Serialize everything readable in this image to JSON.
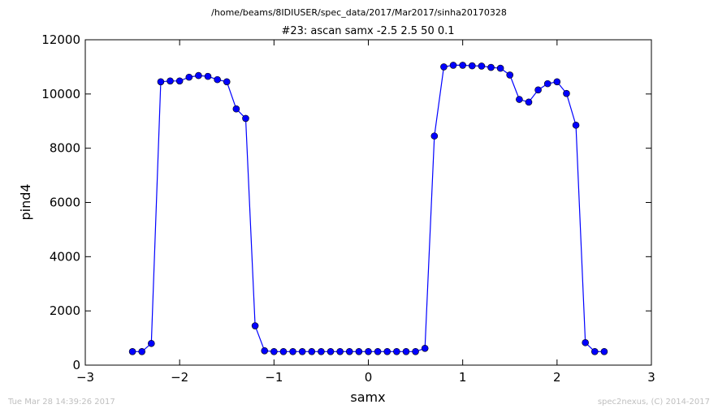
{
  "header": {
    "path": "/home/beams/8IDIUSER/spec_data/2017/Mar2017/sinha20170328"
  },
  "footer": {
    "timestamp": "Tue Mar 28 14:39:26 2017",
    "credit": "spec2nexus, (C) 2014-2017"
  },
  "chart_data": {
    "type": "line",
    "title": "#23: ascan  samx -2.5 2.5  50 0.1",
    "xlabel": "samx",
    "ylabel": "pind4",
    "xlim": [
      -3,
      3
    ],
    "ylim": [
      0,
      12000
    ],
    "xticks": [
      -3,
      -2,
      -1,
      0,
      1,
      2,
      3
    ],
    "xtick_labels": [
      "−3",
      "−2",
      "−1",
      "0",
      "1",
      "2",
      "3"
    ],
    "yticks": [
      0,
      2000,
      4000,
      6000,
      8000,
      10000,
      12000
    ],
    "ytick_labels": [
      "0",
      "2000",
      "4000",
      "6000",
      "8000",
      "10000",
      "12000"
    ],
    "grid": false,
    "line_color": "#0000ff",
    "marker": "circle",
    "series": [
      {
        "x": [
          -2.5,
          -2.4,
          -2.3,
          -2.2,
          -2.1,
          -2.0,
          -1.9,
          -1.8,
          -1.7,
          -1.6,
          -1.5,
          -1.4,
          -1.3,
          -1.2,
          -1.1,
          -1.0,
          -0.9,
          -0.8,
          -0.7,
          -0.6,
          -0.5,
          -0.4,
          -0.3,
          -0.2,
          -0.1,
          0.0,
          0.1,
          0.2,
          0.3,
          0.4,
          0.5,
          0.6,
          0.7,
          0.8,
          0.9,
          1.0,
          1.1,
          1.2,
          1.3,
          1.4,
          1.5,
          1.6,
          1.7,
          1.8,
          1.9,
          2.0,
          2.1,
          2.2,
          2.3,
          2.4,
          2.5
        ],
        "values": [
          500,
          500,
          800,
          10450,
          10480,
          10480,
          10620,
          10680,
          10650,
          10530,
          10450,
          9450,
          9100,
          1450,
          530,
          500,
          500,
          500,
          500,
          500,
          500,
          500,
          500,
          500,
          500,
          500,
          500,
          500,
          500,
          500,
          500,
          620,
          8450,
          11000,
          11060,
          11060,
          11040,
          11030,
          10980,
          10950,
          10700,
          9800,
          9700,
          10150,
          10380,
          10450,
          10020,
          8850,
          830,
          500,
          500
        ]
      }
    ]
  }
}
